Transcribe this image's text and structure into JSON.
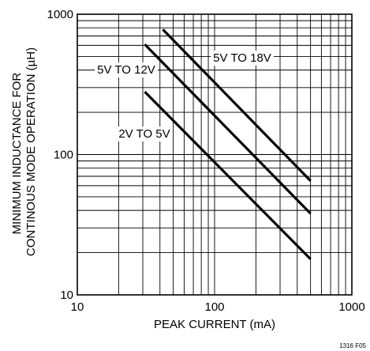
{
  "chart_data": {
    "type": "line",
    "x_scale": "log",
    "y_scale": "log",
    "xlim": [
      10,
      1000
    ],
    "ylim": [
      10,
      1000
    ],
    "grid": true,
    "xlabel": "PEAK CURRENT (mA)",
    "ylabel_lines": [
      "MINIMUM INDUCTANCE FOR",
      "CONTINOUS MODE OPERATION (µH)"
    ],
    "x_ticks": [
      {
        "value": 10,
        "label": "10"
      },
      {
        "value": 100,
        "label": "100"
      },
      {
        "value": 1000,
        "label": "1000"
      }
    ],
    "y_ticks": [
      {
        "value": 10,
        "label": "10"
      },
      {
        "value": 100,
        "label": "100"
      },
      {
        "value": 1000,
        "label": "1000"
      }
    ],
    "series": [
      {
        "name": "5V TO 18V",
        "x": [
          42,
          500
        ],
        "y": [
          780,
          65
        ]
      },
      {
        "name": "5V TO 12V",
        "x": [
          31,
          500
        ],
        "y": [
          610,
          38
        ]
      },
      {
        "name": "2V TO 5V",
        "x": [
          31,
          500
        ],
        "y": [
          280,
          18
        ]
      }
    ],
    "figure_id": "1316 F05"
  }
}
